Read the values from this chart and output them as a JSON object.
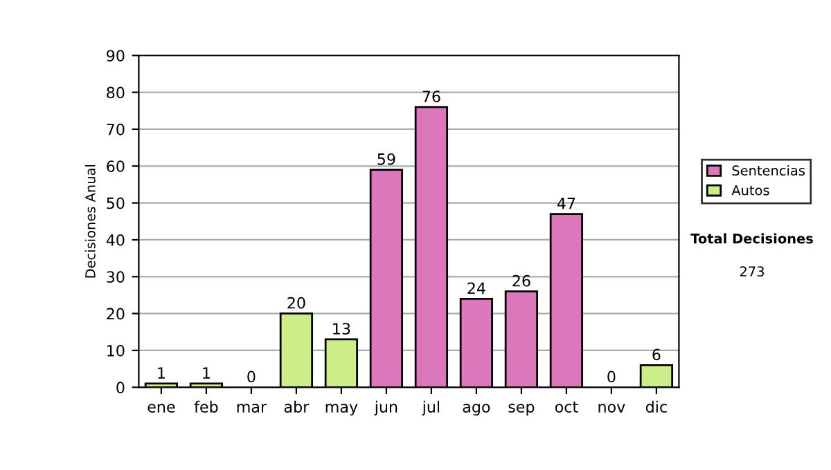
{
  "chart_data": {
    "type": "bar",
    "ylabel": "Decisiones Anual",
    "categories": [
      "ene",
      "feb",
      "mar",
      "abr",
      "may",
      "jun",
      "jul",
      "ago",
      "sep",
      "oct",
      "nov",
      "dic"
    ],
    "series": [
      {
        "name": "Sentencias",
        "color": "#dd77bb",
        "values": [
          null,
          null,
          null,
          null,
          null,
          59,
          76,
          24,
          26,
          47,
          null,
          null
        ]
      },
      {
        "name": "Autos",
        "color": "#ccee88",
        "values": [
          1,
          1,
          0,
          20,
          13,
          null,
          null,
          null,
          null,
          null,
          0,
          6
        ]
      }
    ],
    "ylim": [
      0,
      90
    ],
    "yticks": [
      0,
      10,
      20,
      30,
      40,
      50,
      60,
      70,
      80,
      90
    ],
    "grid": "y",
    "legend": "right",
    "data_labels": true,
    "annotations": [
      "Total Decisiones",
      "273"
    ]
  }
}
